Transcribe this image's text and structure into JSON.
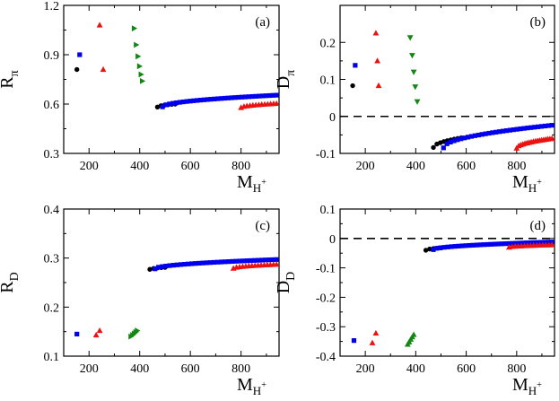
{
  "colors": {
    "black": "#000000",
    "blue": "#0000ee",
    "red": "#ee1111",
    "green": "#118811"
  },
  "chart_data": [
    {
      "panel": "a",
      "panel_label": "(a)",
      "type": "scatter",
      "xlabel": {
        "main": "M",
        "sub": "H",
        "sup": "+"
      },
      "ylabel": {
        "main": "R",
        "sub": "π"
      },
      "xlim": [
        100,
        950
      ],
      "ylim": [
        0.3,
        1.2
      ],
      "xticks": [
        200,
        400,
        600,
        800
      ],
      "yticks": [
        0.3,
        0.6,
        0.9,
        1.2
      ],
      "yticklabels": [
        "0.3",
        "0.6",
        "0.9",
        "1.2"
      ],
      "ref_line": null,
      "series": [
        {
          "name": "black",
          "color": "black",
          "marker": "circle",
          "points": [
            [
              152,
              0.81
            ]
          ]
        },
        {
          "name": "blue",
          "color": "blue",
          "marker": "square",
          "points": [
            [
              163,
              0.9
            ]
          ]
        },
        {
          "name": "red",
          "color": "red",
          "marker": "triangle-up",
          "points": [
            [
              242,
              1.08
            ],
            [
              256,
              0.81
            ]
          ]
        },
        {
          "name": "green",
          "color": "green",
          "marker": "triangle-right",
          "points": [
            [
              378,
              1.06
            ],
            [
              386,
              0.96
            ],
            [
              393,
              0.89
            ],
            [
              399,
              0.83
            ],
            [
              405,
              0.78
            ],
            [
              410,
              0.74
            ]
          ]
        },
        {
          "name": "black-curve",
          "color": "black",
          "marker": "circle",
          "curve": {
            "x0": 470,
            "x1": 540,
            "n": 6,
            "y0": 0.582,
            "y1": 0.6
          }
        },
        {
          "name": "blue-curve",
          "color": "blue",
          "marker": "square",
          "curve": {
            "x0": 490,
            "x1": 940,
            "n": 34,
            "y0": 0.583,
            "y1": 0.654
          }
        },
        {
          "name": "red-curve",
          "color": "red",
          "marker": "triangle-up",
          "curve": {
            "x0": 800,
            "x1": 940,
            "n": 13,
            "y0": 0.578,
            "y1": 0.603
          }
        }
      ]
    },
    {
      "panel": "b",
      "panel_label": "(b)",
      "type": "scatter",
      "xlabel": {
        "main": "M",
        "sub": "H",
        "sup": "+"
      },
      "ylabel": {
        "main": "D",
        "sub": "π"
      },
      "xlim": [
        100,
        950
      ],
      "ylim": [
        -0.1,
        0.3
      ],
      "xticks": [
        200,
        400,
        600,
        800
      ],
      "yticks": [
        -0.1,
        0,
        0.1,
        0.2
      ],
      "yticklabels": [
        "-0.1",
        "0",
        "0.1",
        "0.2"
      ],
      "ref_line": 0,
      "series": [
        {
          "name": "black",
          "color": "black",
          "marker": "circle",
          "points": [
            [
              150,
              0.083
            ]
          ]
        },
        {
          "name": "blue",
          "color": "blue",
          "marker": "square",
          "points": [
            [
              160,
              0.138
            ]
          ]
        },
        {
          "name": "red",
          "color": "red",
          "marker": "triangle-up",
          "points": [
            [
              242,
              0.225
            ],
            [
              248,
              0.15
            ],
            [
              253,
              0.083
            ]
          ]
        },
        {
          "name": "green",
          "color": "green",
          "marker": "triangle-down",
          "points": [
            [
              378,
              0.213
            ],
            [
              386,
              0.165
            ],
            [
              392,
              0.12
            ],
            [
              398,
              0.08
            ],
            [
              406,
              0.04
            ]
          ]
        },
        {
          "name": "black-curve",
          "color": "black",
          "marker": "circle",
          "curve": {
            "x0": 470,
            "x1": 580,
            "n": 9,
            "y0": -0.084,
            "y1": -0.058
          }
        },
        {
          "name": "blue-curve",
          "color": "blue",
          "marker": "square",
          "curve": {
            "x0": 510,
            "x1": 940,
            "n": 32,
            "y0": -0.085,
            "y1": -0.024
          }
        },
        {
          "name": "red-curve",
          "color": "red",
          "marker": "triangle-up",
          "curve": {
            "x0": 800,
            "x1": 940,
            "n": 18,
            "y0": -0.086,
            "y1": -0.06
          }
        }
      ]
    },
    {
      "panel": "c",
      "panel_label": "(c)",
      "type": "scatter",
      "xlabel": {
        "main": "M",
        "sub": "H",
        "sup": "+"
      },
      "ylabel": {
        "main": "R",
        "sub": "D"
      },
      "xlim": [
        100,
        950
      ],
      "ylim": [
        0.1,
        0.4
      ],
      "xticks": [
        200,
        400,
        600,
        800
      ],
      "yticks": [
        0.1,
        0.2,
        0.3,
        0.4
      ],
      "yticklabels": [
        "0.1",
        "0.2",
        "0.3",
        "0.4"
      ],
      "ref_line": null,
      "series": [
        {
          "name": "blue",
          "color": "blue",
          "marker": "square",
          "points": [
            [
              152,
              0.145
            ]
          ]
        },
        {
          "name": "red",
          "color": "red",
          "marker": "triangle-up",
          "points": [
            [
              228,
              0.143
            ],
            [
              242,
              0.152
            ]
          ]
        },
        {
          "name": "green",
          "color": "green",
          "marker": "triangle-right",
          "points": [
            [
              365,
              0.14
            ],
            [
              372,
              0.143
            ],
            [
              378,
              0.146
            ],
            [
              384,
              0.149
            ],
            [
              390,
              0.152
            ]
          ]
        },
        {
          "name": "black-curve",
          "color": "black",
          "marker": "circle",
          "curve": {
            "x0": 440,
            "x1": 500,
            "n": 5,
            "y0": 0.277,
            "y1": 0.281
          }
        },
        {
          "name": "blue-curve",
          "color": "blue",
          "marker": "square",
          "curve": {
            "x0": 460,
            "x1": 940,
            "n": 34,
            "y0": 0.278,
            "y1": 0.297
          }
        },
        {
          "name": "red-curve",
          "color": "red",
          "marker": "triangle-up",
          "curve": {
            "x0": 770,
            "x1": 940,
            "n": 15,
            "y0": 0.279,
            "y1": 0.287
          }
        }
      ]
    },
    {
      "panel": "d",
      "panel_label": "(d)",
      "type": "scatter",
      "xlabel": {
        "main": "M",
        "sub": "H",
        "sup": "+"
      },
      "ylabel": {
        "main": "D",
        "sub": "D"
      },
      "xlim": [
        100,
        950
      ],
      "ylim": [
        -0.4,
        0.1
      ],
      "xticks": [
        200,
        400,
        600,
        800
      ],
      "yticks": [
        -0.4,
        -0.3,
        -0.2,
        -0.1,
        0,
        0.1
      ],
      "yticklabels": [
        "-0.4",
        "-0.3",
        "-0.2",
        "-0.1",
        "0",
        "0.1"
      ],
      "ref_line": 0,
      "series": [
        {
          "name": "blue",
          "color": "blue",
          "marker": "square",
          "points": [
            [
              155,
              -0.347
            ]
          ]
        },
        {
          "name": "red",
          "color": "red",
          "marker": "triangle-up",
          "points": [
            [
              228,
              -0.355
            ],
            [
              242,
              -0.322
            ]
          ]
        },
        {
          "name": "green",
          "color": "green",
          "marker": "triangle-up",
          "points": [
            [
              368,
              -0.36
            ],
            [
              374,
              -0.352
            ],
            [
              380,
              -0.343
            ],
            [
              386,
              -0.335
            ],
            [
              392,
              -0.327
            ]
          ]
        },
        {
          "name": "black-curve",
          "color": "black",
          "marker": "circle",
          "curve": {
            "x0": 440,
            "x1": 500,
            "n": 5,
            "y0": -0.04,
            "y1": -0.032
          }
        },
        {
          "name": "blue-curve",
          "color": "blue",
          "marker": "square",
          "curve": {
            "x0": 470,
            "x1": 940,
            "n": 34,
            "y0": -0.038,
            "y1": -0.012
          }
        },
        {
          "name": "red-curve",
          "color": "red",
          "marker": "triangle-up",
          "curve": {
            "x0": 770,
            "x1": 940,
            "n": 15,
            "y0": -0.03,
            "y1": -0.022
          }
        }
      ]
    }
  ]
}
